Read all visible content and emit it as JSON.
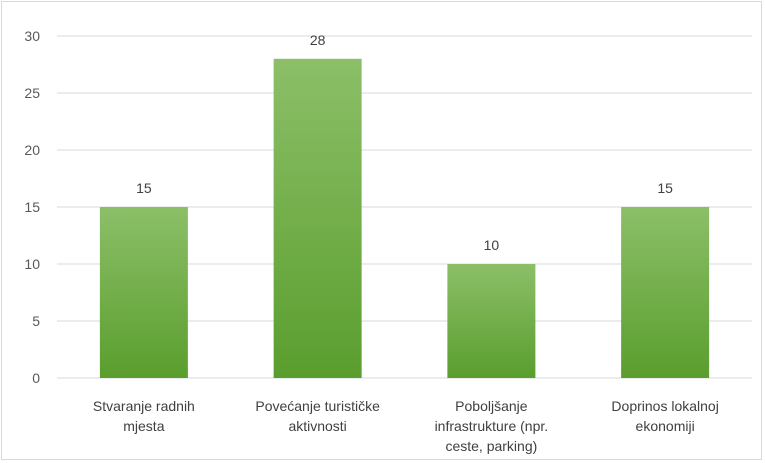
{
  "chart_data": {
    "type": "bar",
    "categories": [
      [
        "Stvaranje radnih",
        "mjesta"
      ],
      [
        "Povećanje turističke",
        "aktivnosti"
      ],
      [
        "Poboljšanje",
        "infrastrukture (npr.",
        "ceste, parking)"
      ],
      [
        "Doprinos lokalnoj",
        "ekonomiji"
      ]
    ],
    "values": [
      15,
      28,
      10,
      15
    ],
    "ylim": [
      0,
      30
    ],
    "yticks": [
      0,
      5,
      10,
      15,
      20,
      25,
      30
    ],
    "grid": true,
    "legend": "none",
    "colors": {
      "bar_top": "#8cbf68",
      "bar_bottom": "#5a9e2e",
      "grid": "#d9d9d9"
    }
  }
}
